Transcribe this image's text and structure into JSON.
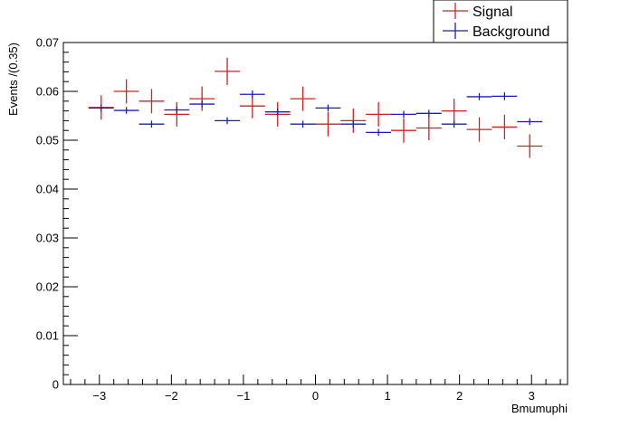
{
  "chart_data": {
    "type": "scatter",
    "title": "",
    "xlabel": "Bmumuphi",
    "ylabel": "Events /(0.35)",
    "xlim": [
      -3.5,
      3.5
    ],
    "ylim": [
      0,
      0.07
    ],
    "x_ticks": [
      "−3",
      "−2",
      "−1",
      "0",
      "1",
      "2",
      "3"
    ],
    "y_ticks": [
      "0",
      "0.01",
      "0.02",
      "0.03",
      "0.04",
      "0.05",
      "0.06",
      "0.07"
    ],
    "bin_width": 0.35,
    "grid": false,
    "legend_position": "top-right",
    "series": [
      {
        "name": "Signal",
        "color": "#d42020",
        "x": [
          -2.975,
          -2.625,
          -2.275,
          -1.925,
          -1.575,
          -1.225,
          -0.875,
          -0.525,
          -0.175,
          0.175,
          0.525,
          0.875,
          1.225,
          1.575,
          1.925,
          2.275,
          2.625,
          2.975
        ],
        "y": [
          0.0567,
          0.06,
          0.058,
          0.0553,
          0.0585,
          0.0641,
          0.057,
          0.0553,
          0.0585,
          0.0533,
          0.054,
          0.0553,
          0.052,
          0.0525,
          0.056,
          0.0522,
          0.0527,
          0.0488
        ],
        "err": [
          0.0025,
          0.0025,
          0.0025,
          0.0025,
          0.0025,
          0.0028,
          0.0025,
          0.0025,
          0.0025,
          0.0025,
          0.0025,
          0.0025,
          0.0025,
          0.0025,
          0.0025,
          0.0025,
          0.0025,
          0.0024
        ]
      },
      {
        "name": "Background",
        "color": "#1a1acc",
        "x": [
          -2.975,
          -2.625,
          -2.275,
          -1.925,
          -1.575,
          -1.225,
          -0.875,
          -0.525,
          -0.175,
          0.175,
          0.525,
          0.875,
          1.225,
          1.575,
          1.925,
          2.275,
          2.625,
          2.975
        ],
        "y": [
          0.0566,
          0.0561,
          0.0533,
          0.0562,
          0.0574,
          0.054,
          0.0594,
          0.0558,
          0.0533,
          0.0566,
          0.0533,
          0.0516,
          0.0553,
          0.0555,
          0.0533,
          0.0589,
          0.059,
          0.0538
        ],
        "err": [
          0.0007,
          0.0007,
          0.0007,
          0.0007,
          0.0007,
          0.0007,
          0.0008,
          0.0007,
          0.0007,
          0.0007,
          0.0007,
          0.0007,
          0.0007,
          0.0007,
          0.0007,
          0.0007,
          0.0008,
          0.0007
        ]
      }
    ]
  }
}
